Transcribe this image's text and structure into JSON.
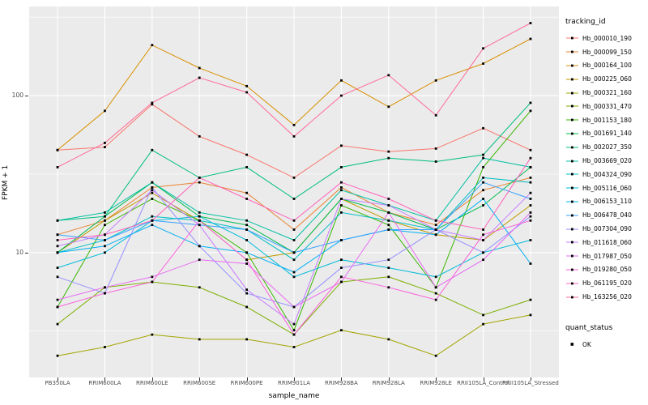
{
  "figure": {
    "legend1_title": "tracking_id",
    "legend2_title": "quant_status",
    "quant_status_items": [
      {
        "label": "OK"
      }
    ],
    "panel_bg": "#EBEBEB",
    "grid_color": "#FFFFFF",
    "axis_text_color": "#4D4D4D"
  },
  "chart_data": {
    "type": "line",
    "title": "",
    "xlabel": "sample_name",
    "ylabel": "FPKM + 1",
    "y_scale": "log10",
    "ylim": [
      1.6,
      370
    ],
    "y_major_ticks": [
      10,
      100
    ],
    "y_minor_ticks": [
      3.162,
      31.62,
      316.2
    ],
    "grid": true,
    "legend_position": "right",
    "categories": [
      "PB350LA",
      "RRIM600LA",
      "RRIM600LE",
      "RRIM600SE",
      "RRIM600PE",
      "RRIM901LA",
      "RRIM928BA",
      "RRIM928LA",
      "RRIM928LE",
      "RRII105LA_Control",
      "RRII105LA_Stressed"
    ],
    "point_shape": "square",
    "point_color": "#000000",
    "series": [
      {
        "name": "Hb_000010_190",
        "color": "#F8766D",
        "values": [
          45,
          47,
          88,
          55,
          42,
          30,
          48,
          44,
          46,
          62,
          45
        ]
      },
      {
        "name": "Hb_000099_150",
        "color": "#EA8331",
        "values": [
          13,
          16,
          26,
          28,
          24,
          14,
          26,
          18,
          15,
          25,
          30
        ]
      },
      {
        "name": "Hb_000164_100",
        "color": "#D89000",
        "values": [
          45,
          80,
          210,
          150,
          115,
          65,
          125,
          85,
          125,
          160,
          230
        ]
      },
      {
        "name": "Hb_000225_060",
        "color": "#C09B00",
        "values": [
          10,
          16,
          24,
          16,
          9,
          10,
          22,
          16,
          13,
          12,
          20
        ]
      },
      {
        "name": "Hb_000321_160",
        "color": "#A3A500",
        "values": [
          2.2,
          2.5,
          3,
          2.8,
          2.8,
          2.5,
          3.2,
          2.8,
          2.2,
          3.5,
          4
        ]
      },
      {
        "name": "Hb_000331_470",
        "color": "#7CAE00",
        "values": [
          3.5,
          6,
          6.5,
          6,
          4.5,
          3,
          6.5,
          7,
          5.5,
          4,
          5
        ]
      },
      {
        "name": "Hb_001153_180",
        "color": "#39B600",
        "values": [
          4.5,
          15,
          22,
          16,
          10,
          3.2,
          20,
          15,
          6,
          35,
          80
        ]
      },
      {
        "name": "Hb_001691_140",
        "color": "#00BB4E",
        "values": [
          10,
          17,
          28,
          17,
          15,
          10,
          22,
          18,
          14,
          20,
          35
        ]
      },
      {
        "name": "Hb_002027_350",
        "color": "#00BF7D",
        "values": [
          16,
          17,
          45,
          30,
          35,
          22,
          35,
          40,
          38,
          42,
          90
        ]
      },
      {
        "name": "Hb_003669_020",
        "color": "#00C1A3",
        "values": [
          16,
          18,
          28,
          18,
          16,
          12,
          25,
          20,
          16,
          40,
          35
        ]
      },
      {
        "name": "Hb_004324_090",
        "color": "#00BFC4",
        "values": [
          10,
          12,
          17,
          16,
          14,
          9,
          18,
          16,
          14,
          30,
          28
        ]
      },
      {
        "name": "Hb_005116_060",
        "color": "#00BBDA",
        "values": [
          8,
          10,
          16,
          17,
          12,
          7,
          9,
          8,
          7,
          10,
          12
        ]
      },
      {
        "name": "Hb_006153_110",
        "color": "#00B0F6",
        "values": [
          10,
          11,
          15,
          11,
          10,
          7.5,
          12,
          14,
          13,
          22,
          8.5
        ]
      },
      {
        "name": "Hb_006478_040",
        "color": "#35A2FF",
        "values": [
          13,
          12,
          16,
          15,
          14,
          10,
          12,
          14,
          14,
          28,
          22
        ]
      },
      {
        "name": "Hb_007304_090",
        "color": "#9590FF",
        "values": [
          7,
          5.5,
          26,
          11,
          5.5,
          4.5,
          8,
          9,
          14,
          10,
          17
        ]
      },
      {
        "name": "Hb_011618_060",
        "color": "#C77CFF",
        "values": [
          11,
          13,
          25,
          15,
          5.8,
          3.5,
          22,
          20,
          14,
          12,
          24
        ]
      },
      {
        "name": "Hb_017987_050",
        "color": "#E76BF3",
        "values": [
          5,
          6,
          7,
          9,
          8.5,
          4.5,
          6.5,
          18,
          6,
          9,
          18
        ]
      },
      {
        "name": "Hb_019280_050",
        "color": "#FA62DB",
        "values": [
          4.5,
          5.5,
          6.5,
          16,
          9,
          3,
          7,
          6,
          5,
          13,
          16
        ]
      },
      {
        "name": "Hb_061195_020",
        "color": "#FF62BC",
        "values": [
          12,
          13,
          16,
          30,
          22,
          16,
          28,
          22,
          16,
          14,
          40
        ]
      },
      {
        "name": "Hb_163256_020",
        "color": "#FF6A98",
        "values": [
          35,
          50,
          90,
          130,
          105,
          55,
          100,
          135,
          75,
          200,
          290
        ]
      }
    ]
  }
}
